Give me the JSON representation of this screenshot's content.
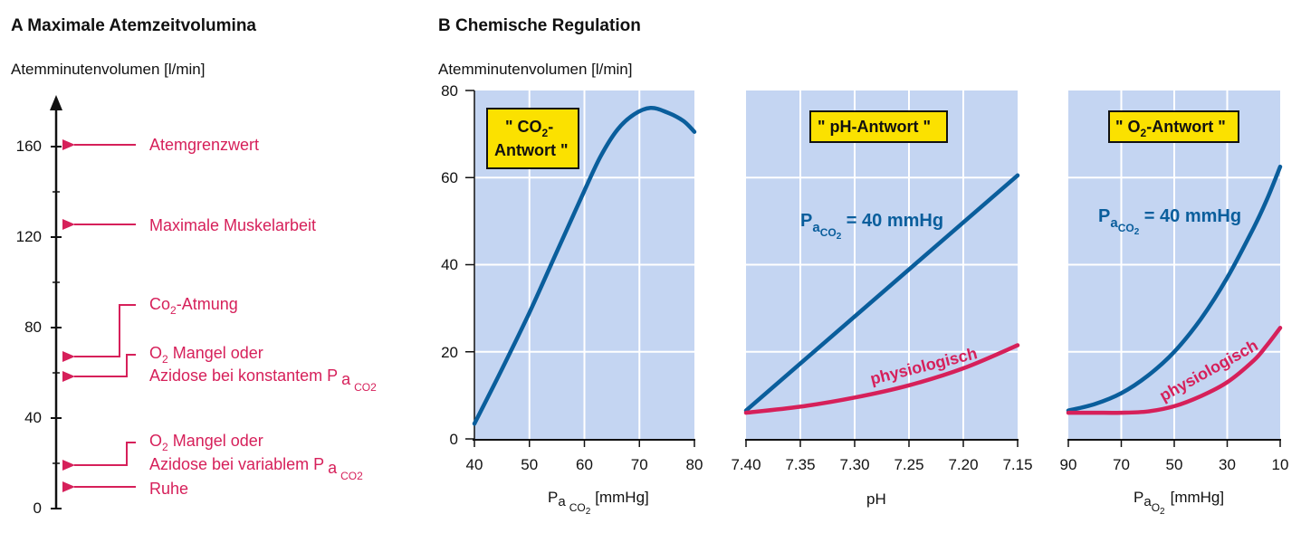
{
  "panel_a": {
    "title": "A  Maximale Atemzeitvolumina",
    "y_label": "Atemminutenvolumen [l/min]",
    "ticks": [
      "0",
      "40",
      "80",
      "120",
      "160"
    ],
    "annotations": {
      "atemgrenzwert": "Atemgrenzwert",
      "muskelarbeit": "Maximale Muskelarbeit",
      "co2_atmung_main": "Co",
      "co2_atmung_sub": "2",
      "co2_atmung_rest": "-Atmung",
      "o2_mangel_1_a": "O",
      "o2_mangel_1_sub": "2",
      "o2_mangel_1_b": " Mangel oder",
      "azidose_konstant_a": "Azidose bei konstantem P",
      "azidose_konstant_sub": "a",
      "azidose_konstant_subsub": "CO2",
      "o2_mangel_2_a": "O",
      "o2_mangel_2_sub": "2",
      "o2_mangel_2_b": " Mangel oder",
      "azidose_variabel_a": "Azidose bei variablem P",
      "azidose_variabel_sub": "a",
      "azidose_variabel_subsub": "CO2",
      "ruhe": "Ruhe"
    }
  },
  "panel_b": {
    "title": "B  Chemische Regulation",
    "y_label": "Atemminutenvolumen [l/min]",
    "y_ticks": [
      "0",
      "20",
      "40",
      "60",
      "80"
    ],
    "tags": {
      "co2_line1_a": "\" CO",
      "co2_line1_sub": "2",
      "co2_line1_b": "-",
      "co2_line2": "Antwort \"",
      "ph": "\" pH-Antwort \"",
      "o2_a": "\" O",
      "o2_sub": "2",
      "o2_b": "-Antwort \""
    },
    "curve_labels": {
      "paco2_a": "P",
      "paco2_sub": "a",
      "paco2_subsub": "CO",
      "paco2_subsubsub": "2",
      "paco2_b": " = 40 mmHg",
      "physiologisch": "physiologisch"
    },
    "x_labels": {
      "c1_a": "P",
      "c1_sub": "a",
      "c1_subsub": "CO",
      "c1_subsubsub": "2",
      "c1_unit": "[mmHg]",
      "c2": "pH",
      "c3_a": "P",
      "c3_sub": "a",
      "c3_subsub": "O",
      "c3_subsubsub": "2",
      "c3_unit": "[mmHg]"
    }
  },
  "colors": {
    "panel_bg": "#c4d5f2",
    "grid": "#ffffff",
    "blue_curve": "#0a5e9c",
    "red_curve": "#d6205a",
    "tag_bg": "#fbe100"
  },
  "chart_data": [
    {
      "type": "line",
      "panel": "A",
      "title": "A  Maximale Atemzeitvolumina",
      "ylabel": "Atemminutenvolumen [l/min]",
      "ylim": [
        0,
        180
      ],
      "y_ticks": [
        0,
        40,
        80,
        120,
        160
      ],
      "markers": [
        {
          "label": "Atemgrenzwert",
          "value": 160
        },
        {
          "label": "Maximale Muskelarbeit",
          "value": 125
        },
        {
          "label": "Co2-Atmung",
          "value": 67
        },
        {
          "label": "O2 Mangel oder Azidose bei konstantem Pa CO2",
          "value": 58
        },
        {
          "label": "O2 Mangel oder Azidose bei variablem Pa CO2",
          "value": 19
        },
        {
          "label": "Ruhe",
          "value": 9
        }
      ]
    },
    {
      "type": "line",
      "panel": "B1",
      "tag": "\"CO2-Antwort\"",
      "xlabel": "Pa CO2 [mmHg]",
      "ylabel": "Atemminutenvolumen [l/min]",
      "xlim": [
        40,
        80
      ],
      "ylim": [
        0,
        80
      ],
      "x_ticks": [
        40,
        50,
        60,
        70,
        80
      ],
      "y_ticks": [
        0,
        20,
        40,
        60,
        80
      ],
      "series": [
        {
          "x": [
            40,
            45,
            50,
            55,
            60,
            63,
            66,
            69,
            72,
            75,
            78,
            80
          ],
          "y": [
            3.5,
            16,
            29,
            43,
            57,
            65,
            71,
            74.5,
            76,
            75,
            73,
            70.5
          ]
        }
      ]
    },
    {
      "type": "line",
      "panel": "B2",
      "tag": "\"pH-Antwort\"",
      "xlabel": "pH",
      "xlim": [
        7.4,
        7.15
      ],
      "ylim": [
        0,
        80
      ],
      "x_ticks": [
        7.4,
        7.35,
        7.3,
        7.25,
        7.2,
        7.15
      ],
      "x_tick_labels": [
        "7.40",
        "7.35",
        "7.30",
        "7.25",
        "7.20",
        "7.15"
      ],
      "y_ticks": [
        0,
        20,
        40,
        60,
        80
      ],
      "series": [
        {
          "name": "Pa CO2 = 40 mmHg",
          "x": [
            7.4,
            7.15
          ],
          "y": [
            6.5,
            60.5
          ]
        },
        {
          "name": "physiologisch",
          "x": [
            7.4,
            7.35,
            7.3,
            7.25,
            7.2,
            7.15
          ],
          "y": [
            6,
            7.4,
            9.5,
            12.3,
            16.2,
            21.5
          ]
        }
      ]
    },
    {
      "type": "line",
      "panel": "B3",
      "tag": "\"O2-Antwort\"",
      "xlabel": "Pa O2 [mmHg]",
      "xlim": [
        90,
        10
      ],
      "ylim": [
        0,
        80
      ],
      "x_ticks": [
        90,
        70,
        50,
        30,
        10
      ],
      "y_ticks": [
        0,
        20,
        40,
        60,
        80
      ],
      "series": [
        {
          "name": "Pa CO2 = 40 mmHg",
          "x": [
            90,
            80,
            70,
            60,
            50,
            40,
            30,
            20,
            15,
            10
          ],
          "y": [
            6.5,
            8,
            10.5,
            14.5,
            20,
            27.5,
            37,
            48.5,
            55,
            62.5
          ]
        },
        {
          "name": "physiologisch",
          "x": [
            90,
            80,
            70,
            60,
            50,
            40,
            30,
            20,
            15,
            10
          ],
          "y": [
            6,
            6,
            6,
            6.3,
            7.5,
            9.8,
            13,
            18,
            21.5,
            25.5
          ]
        }
      ]
    }
  ]
}
